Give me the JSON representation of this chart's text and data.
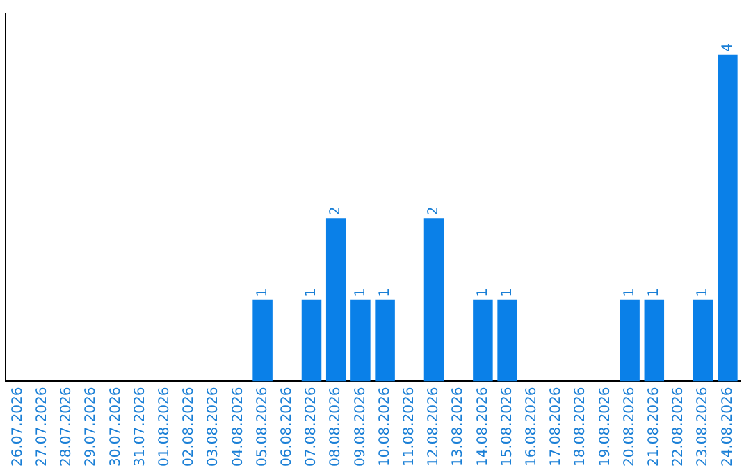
{
  "chart_data": {
    "type": "bar",
    "categories": [
      "26.07.2026",
      "27.07.2026",
      "28.07.2026",
      "29.07.2026",
      "30.07.2026",
      "31.07.2026",
      "01.08.2026",
      "02.08.2026",
      "03.08.2026",
      "04.08.2026",
      "05.08.2026",
      "06.08.2026",
      "07.08.2026",
      "08.08.2026",
      "09.08.2026",
      "10.08.2026",
      "11.08.2026",
      "12.08.2026",
      "13.08.2026",
      "14.08.2026",
      "15.08.2026",
      "16.08.2026",
      "17.08.2026",
      "18.08.2026",
      "19.08.2026",
      "20.08.2026",
      "21.08.2026",
      "22.08.2026",
      "23.08.2026",
      "24.08.2026"
    ],
    "values": [
      0,
      0,
      0,
      0,
      0,
      0,
      0,
      0,
      0,
      0,
      1,
      0,
      1,
      2,
      1,
      1,
      0,
      2,
      0,
      1,
      1,
      0,
      0,
      0,
      0,
      1,
      1,
      0,
      1,
      4
    ],
    "value_labels": [
      null,
      null,
      null,
      null,
      null,
      null,
      null,
      null,
      null,
      null,
      "1",
      null,
      "1",
      "2",
      "1",
      "1",
      null,
      "2",
      null,
      "1",
      "1",
      null,
      null,
      null,
      null,
      "1",
      "1",
      null,
      "1",
      "4"
    ],
    "color": "#0a80e8",
    "tick_labels": "x",
    "grid": false,
    "legend": false
  }
}
